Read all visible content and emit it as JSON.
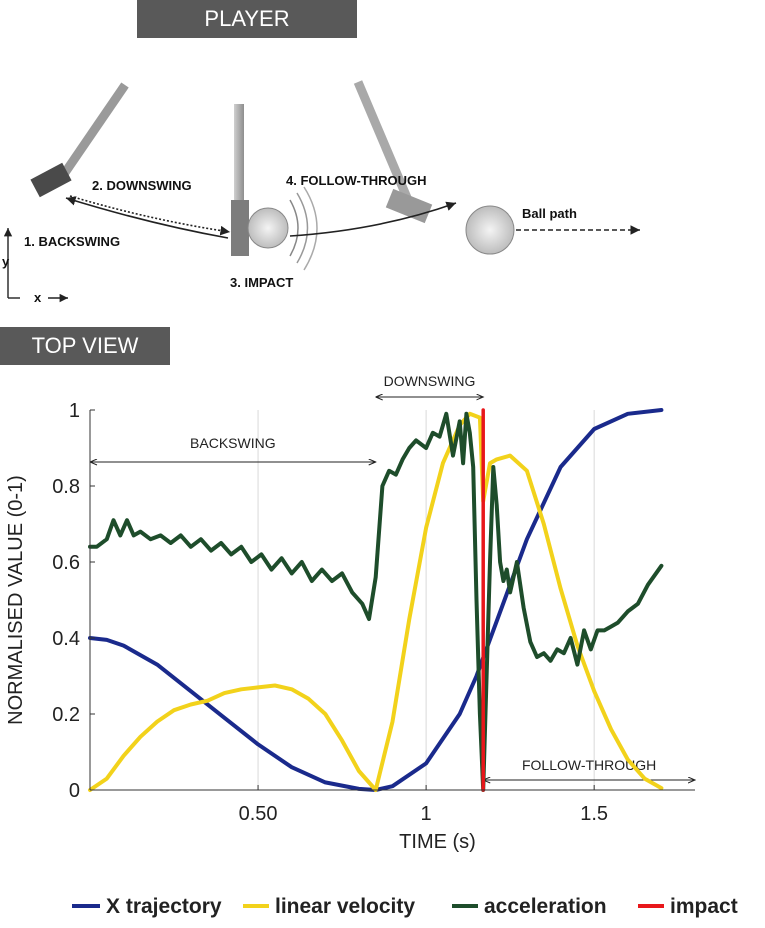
{
  "banners": {
    "player": "PLAYER",
    "top_view": "TOP VIEW"
  },
  "illustration": {
    "labels": {
      "backswing": "1. BACKSWING",
      "downswing": "2. DOWNSWING",
      "impact": "3. IMPACT",
      "follow_through": "4. FOLLOW-THROUGH",
      "ball_path": "Ball path"
    },
    "axes": {
      "x": "x",
      "y": "y"
    }
  },
  "colors": {
    "x_trajectory": "#1a2a8c",
    "linear_velocity": "#f2d21b",
    "acceleration": "#1e4d2b",
    "impact": "#e8171b"
  },
  "chart_data": {
    "type": "line",
    "xlabel": "TIME (s)",
    "ylabel": "NORMALISED VALUE (0-1)",
    "xlim": [
      0,
      1.8
    ],
    "ylim": [
      0,
      1
    ],
    "xticks": [
      0.5,
      1.0,
      1.5
    ],
    "xtick_labels": [
      "0.50",
      "1",
      "1.5"
    ],
    "yticks": [
      0,
      0.2,
      0.4,
      0.6,
      0.8,
      1
    ],
    "ytick_labels": [
      "0",
      "0.2",
      "0.4",
      "0.6",
      "0.8",
      "1"
    ],
    "grid": "vertical",
    "legend_position": "bottom",
    "phases": [
      {
        "label": "BACKSWING",
        "start": 0.0,
        "end": 0.85
      },
      {
        "label": "DOWNSWING",
        "start": 0.85,
        "end": 1.17
      },
      {
        "label": "FOLLOW-THROUGH",
        "start": 1.17,
        "end": 1.8
      }
    ],
    "series": [
      {
        "name": "X trajectory",
        "x": [
          0.0,
          0.05,
          0.1,
          0.2,
          0.3,
          0.4,
          0.5,
          0.6,
          0.7,
          0.8,
          0.85,
          0.9,
          1.0,
          1.1,
          1.15,
          1.2,
          1.3,
          1.4,
          1.5,
          1.6,
          1.7
        ],
        "y": [
          0.4,
          0.395,
          0.38,
          0.33,
          0.26,
          0.19,
          0.12,
          0.06,
          0.02,
          0.003,
          0.0,
          0.01,
          0.07,
          0.2,
          0.3,
          0.42,
          0.66,
          0.85,
          0.95,
          0.99,
          1.0
        ]
      },
      {
        "name": "linear velocity",
        "x": [
          0.0,
          0.05,
          0.1,
          0.15,
          0.2,
          0.25,
          0.3,
          0.35,
          0.4,
          0.45,
          0.5,
          0.55,
          0.6,
          0.65,
          0.7,
          0.75,
          0.8,
          0.85,
          0.9,
          0.95,
          1.0,
          1.05,
          1.1,
          1.13,
          1.16,
          1.17,
          1.19,
          1.21,
          1.25,
          1.3,
          1.35,
          1.4,
          1.45,
          1.5,
          1.55,
          1.6,
          1.65,
          1.7
        ],
        "y": [
          0.0,
          0.03,
          0.09,
          0.14,
          0.18,
          0.21,
          0.225,
          0.235,
          0.255,
          0.265,
          0.27,
          0.275,
          0.265,
          0.24,
          0.2,
          0.13,
          0.05,
          0.0,
          0.18,
          0.45,
          0.69,
          0.86,
          0.96,
          0.99,
          0.98,
          0.76,
          0.86,
          0.87,
          0.88,
          0.84,
          0.7,
          0.53,
          0.38,
          0.26,
          0.16,
          0.08,
          0.03,
          0.005
        ]
      },
      {
        "name": "acceleration",
        "x": [
          0.0,
          0.02,
          0.05,
          0.07,
          0.09,
          0.11,
          0.13,
          0.15,
          0.18,
          0.21,
          0.24,
          0.27,
          0.3,
          0.33,
          0.36,
          0.39,
          0.42,
          0.45,
          0.48,
          0.51,
          0.54,
          0.57,
          0.6,
          0.63,
          0.66,
          0.69,
          0.72,
          0.75,
          0.78,
          0.81,
          0.83,
          0.85,
          0.87,
          0.89,
          0.91,
          0.93,
          0.95,
          0.97,
          1.0,
          1.02,
          1.04,
          1.06,
          1.08,
          1.1,
          1.11,
          1.12,
          1.13,
          1.14,
          1.15,
          1.16,
          1.17,
          1.18,
          1.19,
          1.2,
          1.21,
          1.22,
          1.23,
          1.24,
          1.25,
          1.27,
          1.29,
          1.31,
          1.33,
          1.35,
          1.37,
          1.39,
          1.41,
          1.43,
          1.45,
          1.47,
          1.49,
          1.51,
          1.53,
          1.55,
          1.57,
          1.6,
          1.63,
          1.66,
          1.7
        ],
        "y": [
          0.64,
          0.64,
          0.66,
          0.71,
          0.67,
          0.71,
          0.67,
          0.68,
          0.66,
          0.67,
          0.65,
          0.67,
          0.64,
          0.66,
          0.63,
          0.65,
          0.62,
          0.64,
          0.6,
          0.62,
          0.58,
          0.61,
          0.57,
          0.6,
          0.55,
          0.58,
          0.55,
          0.57,
          0.52,
          0.49,
          0.45,
          0.56,
          0.8,
          0.84,
          0.83,
          0.87,
          0.9,
          0.92,
          0.9,
          0.94,
          0.93,
          0.99,
          0.88,
          0.97,
          0.86,
          0.99,
          0.94,
          0.85,
          0.5,
          0.2,
          0.0,
          0.3,
          0.6,
          0.85,
          0.75,
          0.6,
          0.55,
          0.58,
          0.52,
          0.6,
          0.48,
          0.39,
          0.35,
          0.36,
          0.34,
          0.37,
          0.36,
          0.4,
          0.33,
          0.42,
          0.37,
          0.42,
          0.42,
          0.43,
          0.44,
          0.47,
          0.49,
          0.54,
          0.59
        ]
      },
      {
        "name": "impact",
        "x": [
          1.17,
          1.17
        ],
        "y": [
          0.0,
          1.0
        ]
      }
    ]
  }
}
